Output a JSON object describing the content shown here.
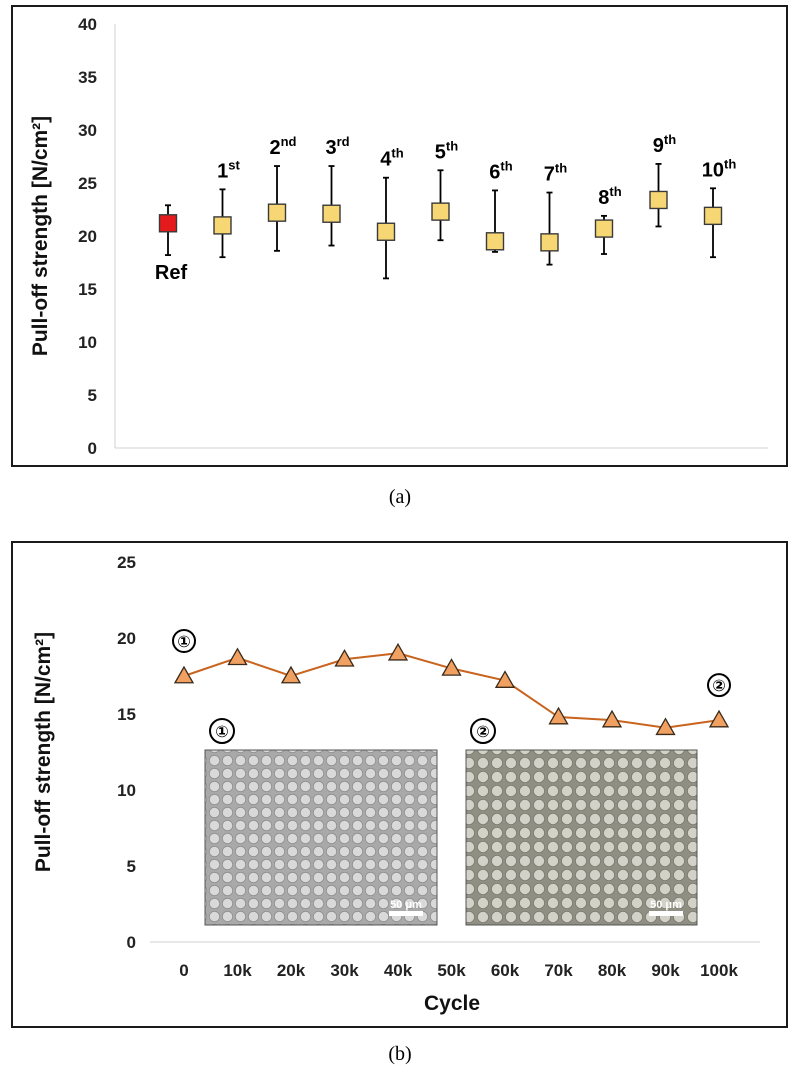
{
  "captions": {
    "a": "(a)",
    "b": "(b)"
  },
  "chart_data": [
    {
      "type": "scatter",
      "ylabel": "Pull-off strength [N/cm²]",
      "ylim": [
        0,
        40
      ],
      "yticks": [
        0,
        5,
        10,
        15,
        20,
        25,
        30,
        35,
        40
      ],
      "grid": false,
      "points": [
        {
          "label": "Ref",
          "sup": "",
          "value": 21.2,
          "err_low": 18.2,
          "err_high": 22.9,
          "color": "#e41a1c"
        },
        {
          "label": "1",
          "sup": "st",
          "value": 21.0,
          "err_low": 18.0,
          "err_high": 24.4,
          "color": "#f7d774"
        },
        {
          "label": "2",
          "sup": "nd",
          "value": 22.2,
          "err_low": 18.6,
          "err_high": 26.6,
          "color": "#f7d774"
        },
        {
          "label": "3",
          "sup": "rd",
          "value": 22.1,
          "err_low": 19.1,
          "err_high": 26.6,
          "color": "#f7d774"
        },
        {
          "label": "4",
          "sup": "th",
          "value": 20.4,
          "err_low": 16.0,
          "err_high": 25.5,
          "color": "#f7d774"
        },
        {
          "label": "5",
          "sup": "th",
          "value": 22.3,
          "err_low": 19.6,
          "err_high": 26.2,
          "color": "#f7d774"
        },
        {
          "label": "6",
          "sup": "th",
          "value": 19.5,
          "err_low": 18.5,
          "err_high": 24.3,
          "color": "#f7d774"
        },
        {
          "label": "7",
          "sup": "th",
          "value": 19.4,
          "err_low": 17.3,
          "err_high": 24.1,
          "color": "#f7d774"
        },
        {
          "label": "8",
          "sup": "th",
          "value": 20.7,
          "err_low": 18.3,
          "err_high": 21.9,
          "color": "#f7d774"
        },
        {
          "label": "9",
          "sup": "th",
          "value": 23.4,
          "err_low": 20.9,
          "err_high": 26.8,
          "color": "#f7d774"
        },
        {
          "label": "10",
          "sup": "th",
          "value": 21.9,
          "err_low": 18.0,
          "err_high": 24.5,
          "color": "#f7d774"
        }
      ]
    },
    {
      "type": "line",
      "xlabel": "Cycle",
      "ylabel": "Pull-off strength [N/cm²]",
      "ylim": [
        0,
        25
      ],
      "yticks": [
        0,
        5,
        10,
        15,
        20,
        25
      ],
      "grid": false,
      "categories": [
        "0",
        "10k",
        "20k",
        "30k",
        "40k",
        "50k",
        "60k",
        "70k",
        "80k",
        "90k",
        "100k"
      ],
      "values": [
        17.5,
        18.7,
        17.5,
        18.6,
        19.0,
        18.0,
        17.2,
        14.8,
        14.6,
        14.1,
        14.6
      ],
      "line_color": "#c8641e",
      "marker_color": "#f0a060",
      "point_annotations": [
        {
          "index": 0,
          "text": "①"
        },
        {
          "index": 10,
          "text": "②"
        }
      ],
      "insets": [
        {
          "marker": "①",
          "scale_text": "50 μm"
        },
        {
          "marker": "②",
          "scale_text": "50 μm"
        }
      ]
    }
  ]
}
